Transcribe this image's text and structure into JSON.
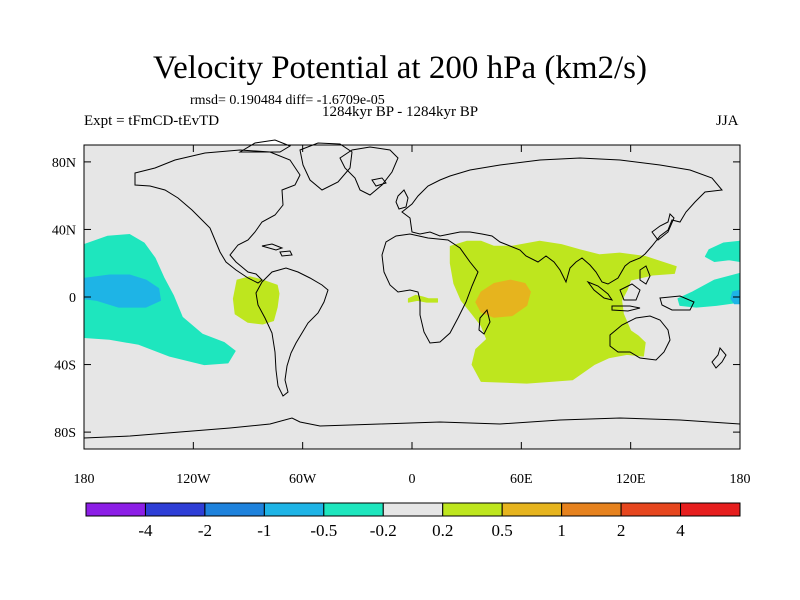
{
  "chart_data": {
    "type": "heatmap",
    "title": "Velocity Potential at 200 hPa (km2/s)",
    "stats_line": "rmsd= 0.190484 diff= -1.6709e-05",
    "experiment": "Expt = tFmCD-tEvTD",
    "period": "1284kyr BP - 1284kyr BP",
    "season": "JJA",
    "xlim": [
      -180,
      180
    ],
    "ylim": [
      -90,
      90
    ],
    "x_ticks": [
      {
        "value": -180,
        "label": "180"
      },
      {
        "value": -120,
        "label": "120W"
      },
      {
        "value": -60,
        "label": "60W"
      },
      {
        "value": 0,
        "label": "0"
      },
      {
        "value": 60,
        "label": "60E"
      },
      {
        "value": 120,
        "label": "120E"
      },
      {
        "value": 180,
        "label": "180"
      }
    ],
    "y_ticks": [
      {
        "value": 80,
        "label": "80N"
      },
      {
        "value": 40,
        "label": "40N"
      },
      {
        "value": 0,
        "label": "0"
      },
      {
        "value": -40,
        "label": "40S"
      },
      {
        "value": -80,
        "label": "80S"
      }
    ],
    "background_color": "#e6e6e6",
    "colorbar": {
      "colors": [
        "#8c1ee6",
        "#2e3ed6",
        "#1e82dc",
        "#1eb4e6",
        "#1ee6be",
        "#e6e6e6",
        "#bee61e",
        "#e6b41e",
        "#e6821e",
        "#e6461e",
        "#e61e1e"
      ],
      "labels": [
        "-4",
        "-2",
        "-1",
        "-0.5",
        "-0.2",
        "0.2",
        "0.5",
        "1",
        "2",
        "4"
      ]
    },
    "regions": [
      {
        "name": "central-pacific-negative",
        "level": "-0.5 to -0.2",
        "color": "#1ee6be",
        "points": [
          [
            -180,
            31
          ],
          [
            -167,
            36
          ],
          [
            -155,
            37
          ],
          [
            -147,
            32
          ],
          [
            -141,
            23
          ],
          [
            -136,
            11
          ],
          [
            -131,
            1
          ],
          [
            -126,
            -12
          ],
          [
            -115,
            -22
          ],
          [
            -103,
            -27
          ],
          [
            -97,
            -32
          ],
          [
            -101,
            -39
          ],
          [
            -114,
            -40
          ],
          [
            -133,
            -35
          ],
          [
            -150,
            -28
          ],
          [
            -166,
            -25
          ],
          [
            -180,
            -24
          ]
        ]
      },
      {
        "name": "central-pacific-core",
        "level": "-1 to -0.5",
        "color": "#1eb4e6",
        "points": [
          [
            -180,
            11
          ],
          [
            -166,
            13
          ],
          [
            -155,
            13
          ],
          [
            -146,
            10
          ],
          [
            -139,
            5
          ],
          [
            -138,
            -2
          ],
          [
            -146,
            -6
          ],
          [
            -161,
            -6
          ],
          [
            -173,
            -2
          ],
          [
            -180,
            -1
          ]
        ]
      },
      {
        "name": "west-pacific-negative-north",
        "level": "-0.5 to -0.2",
        "color": "#1ee6be",
        "points": [
          [
            180,
            33
          ],
          [
            171,
            32
          ],
          [
            163,
            28
          ],
          [
            161,
            24
          ],
          [
            166,
            21
          ],
          [
            174,
            22
          ],
          [
            180,
            21
          ]
        ]
      },
      {
        "name": "west-pacific-negative-equator",
        "level": "-0.5 to -0.2",
        "color": "#1ee6be",
        "points": [
          [
            180,
            14
          ],
          [
            166,
            10
          ],
          [
            154,
            3
          ],
          [
            146,
            -1
          ],
          [
            147,
            -5
          ],
          [
            156,
            -6
          ],
          [
            167,
            -5
          ],
          [
            180,
            -3
          ]
        ]
      },
      {
        "name": "west-pacific-core",
        "level": "-1 to -0.5",
        "color": "#1eb4e6",
        "points": [
          [
            180,
            4
          ],
          [
            176,
            3
          ],
          [
            175,
            -1
          ],
          [
            177,
            -4
          ],
          [
            180,
            -4
          ]
        ]
      },
      {
        "name": "south-america-positive",
        "level": "0.2 to 0.5",
        "color": "#bee61e",
        "points": [
          [
            -96,
            10
          ],
          [
            -89,
            12
          ],
          [
            -82,
            10
          ],
          [
            -74,
            7
          ],
          [
            -73,
            2
          ],
          [
            -74,
            -6
          ],
          [
            -76,
            -14
          ],
          [
            -82,
            -16
          ],
          [
            -90,
            -15
          ],
          [
            -97,
            -10
          ],
          [
            -98,
            -1
          ]
        ]
      },
      {
        "name": "africa-positive",
        "level": "0.2 to 0.5",
        "color": "#bee61e",
        "points": [
          [
            -2,
            -1
          ],
          [
            2,
            1
          ],
          [
            6,
            0
          ],
          [
            9,
            -1
          ],
          [
            14,
            -1
          ],
          [
            14,
            -3
          ],
          [
            8,
            -3
          ],
          [
            3,
            -2
          ],
          [
            -2,
            -3
          ]
        ]
      },
      {
        "name": "indian-ocean-positive",
        "level": "0.2 to 0.5",
        "color": "#bee61e",
        "points": [
          [
            21,
            30
          ],
          [
            30,
            33
          ],
          [
            38,
            33
          ],
          [
            45,
            30
          ],
          [
            55,
            30
          ],
          [
            70,
            33
          ],
          [
            82,
            31
          ],
          [
            92,
            28
          ],
          [
            103,
            25
          ],
          [
            114,
            26
          ],
          [
            128,
            24
          ],
          [
            145,
            18
          ],
          [
            144,
            14
          ],
          [
            132,
            13
          ],
          [
            120,
            10
          ],
          [
            118,
            4
          ],
          [
            115,
            -2
          ],
          [
            116,
            -10
          ],
          [
            120,
            -20
          ],
          [
            124,
            -23
          ],
          [
            128,
            -27
          ],
          [
            127,
            -35
          ],
          [
            118,
            -34
          ],
          [
            108,
            -36
          ],
          [
            100,
            -40
          ],
          [
            88,
            -49
          ],
          [
            63,
            -51
          ],
          [
            38,
            -50
          ],
          [
            33,
            -40
          ],
          [
            35,
            -31
          ],
          [
            41,
            -25
          ],
          [
            38,
            -17
          ],
          [
            33,
            -10
          ],
          [
            27,
            -2
          ],
          [
            23,
            8
          ],
          [
            21,
            20
          ]
        ]
      },
      {
        "name": "indian-ocean-core",
        "level": "0.5 to 1",
        "color": "#e6b41e",
        "points": [
          [
            38,
            3
          ],
          [
            45,
            8
          ],
          [
            54,
            10
          ],
          [
            62,
            8
          ],
          [
            65,
            3
          ],
          [
            63,
            -5
          ],
          [
            55,
            -11
          ],
          [
            45,
            -12
          ],
          [
            38,
            -9
          ],
          [
            35,
            -3
          ]
        ]
      }
    ]
  }
}
